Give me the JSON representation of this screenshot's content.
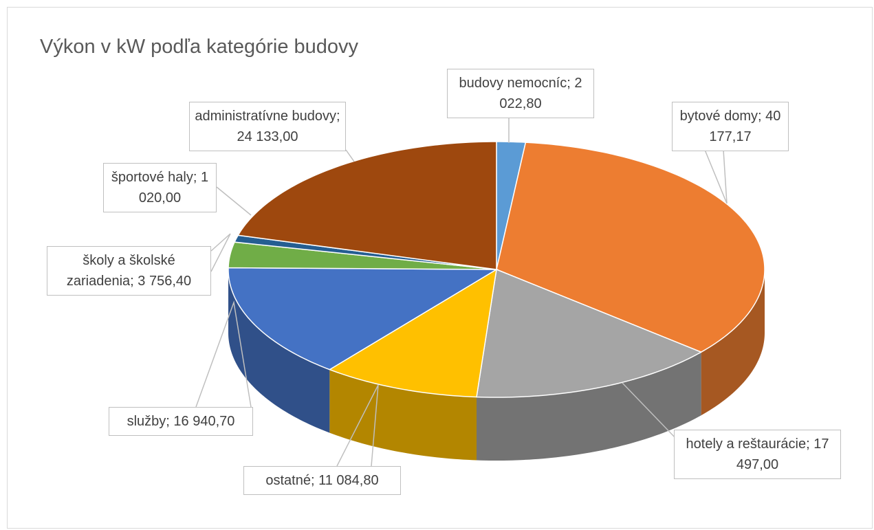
{
  "chart_data": {
    "type": "pie3d",
    "title": "Výkon v kW podľa kategórie budovy",
    "categories": [
      "budovy nemocníc",
      "bytové domy",
      "hotely a reštaurácie",
      "ostatné",
      "služby",
      "školy a školské zariadenia",
      "športové haly",
      "administratívne budovy"
    ],
    "values": [
      2022.8,
      40177.17,
      17497.0,
      11084.8,
      16940.7,
      3756.4,
      1020.0,
      24133.0
    ],
    "value_labels": [
      "2 022,80",
      "40 177,17",
      "17 497,00",
      "11 084,80",
      "16 940,70",
      "3 756,40",
      "1 020,00",
      "24 133,00"
    ],
    "label_separator": ";",
    "colors": [
      "#5b9bd5",
      "#ed7d31",
      "#a5a5a5",
      "#ffc000",
      "#4472c4",
      "#70ad47",
      "#255e91",
      "#9e480e"
    ]
  }
}
